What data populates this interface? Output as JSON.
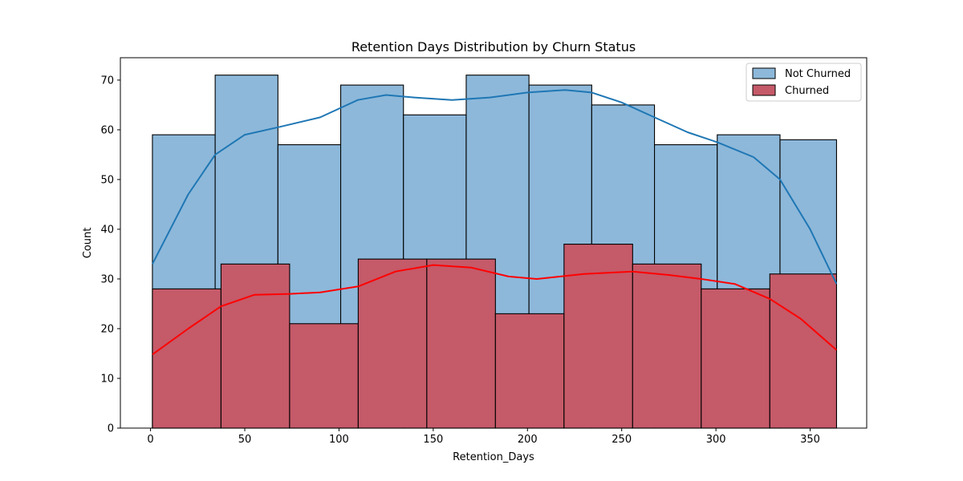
{
  "chart_data": {
    "type": "histogram",
    "title": "Retention Days Distribution by Churn Status",
    "xlabel": "Retention_Days",
    "ylabel": "Count",
    "xlim": [
      -16,
      380
    ],
    "ylim": [
      0,
      74.5
    ],
    "x_ticks": [
      0,
      50,
      100,
      150,
      200,
      250,
      300,
      350
    ],
    "y_ticks": [
      0,
      10,
      20,
      30,
      40,
      50,
      60,
      70
    ],
    "grid": false,
    "legend_position": "top-right",
    "series": [
      {
        "name": "Not Churned",
        "color": "#1f77b4",
        "fill_color": "#8db8da",
        "bin_edges": [
          1,
          34.3,
          67.6,
          100.9,
          134.2,
          167.5,
          200.8,
          234.1,
          267.4,
          300.7,
          334,
          364
        ],
        "counts": [
          59,
          71,
          57,
          69,
          63,
          71,
          69,
          65,
          57,
          59,
          58
        ],
        "kde": [
          [
            1,
            33
          ],
          [
            20,
            47
          ],
          [
            34.3,
            55
          ],
          [
            50,
            59
          ],
          [
            67.6,
            60.5
          ],
          [
            90,
            62.5
          ],
          [
            110,
            66
          ],
          [
            125,
            67
          ],
          [
            140,
            66.5
          ],
          [
            160,
            66
          ],
          [
            180,
            66.5
          ],
          [
            200,
            67.5
          ],
          [
            220,
            68
          ],
          [
            234.1,
            67.5
          ],
          [
            250,
            65.5
          ],
          [
            267.4,
            62.5
          ],
          [
            285,
            59.5
          ],
          [
            300.7,
            57.5
          ],
          [
            320,
            54.5
          ],
          [
            334,
            50
          ],
          [
            350,
            40
          ],
          [
            364,
            29
          ]
        ]
      },
      {
        "name": "Churned",
        "color": "#ff0000",
        "fill_color": "#c55a69",
        "bin_edges": [
          1,
          37.4,
          73.8,
          110.2,
          146.6,
          183,
          219.4,
          255.8,
          292.2,
          328.6,
          364
        ],
        "counts": [
          28,
          33,
          21,
          34,
          34,
          23,
          37,
          33,
          28,
          31
        ],
        "kde": [
          [
            1,
            14.8
          ],
          [
            20,
            20
          ],
          [
            37.4,
            24.5
          ],
          [
            55,
            26.8
          ],
          [
            73.8,
            27
          ],
          [
            90,
            27.3
          ],
          [
            110.2,
            28.5
          ],
          [
            130,
            31.5
          ],
          [
            150,
            32.8
          ],
          [
            170,
            32.3
          ],
          [
            190,
            30.5
          ],
          [
            205,
            30
          ],
          [
            230,
            31
          ],
          [
            255.8,
            31.5
          ],
          [
            275,
            30.8
          ],
          [
            292.2,
            30
          ],
          [
            310,
            29
          ],
          [
            328.6,
            26
          ],
          [
            345,
            22
          ],
          [
            364,
            15.7
          ]
        ]
      }
    ]
  }
}
